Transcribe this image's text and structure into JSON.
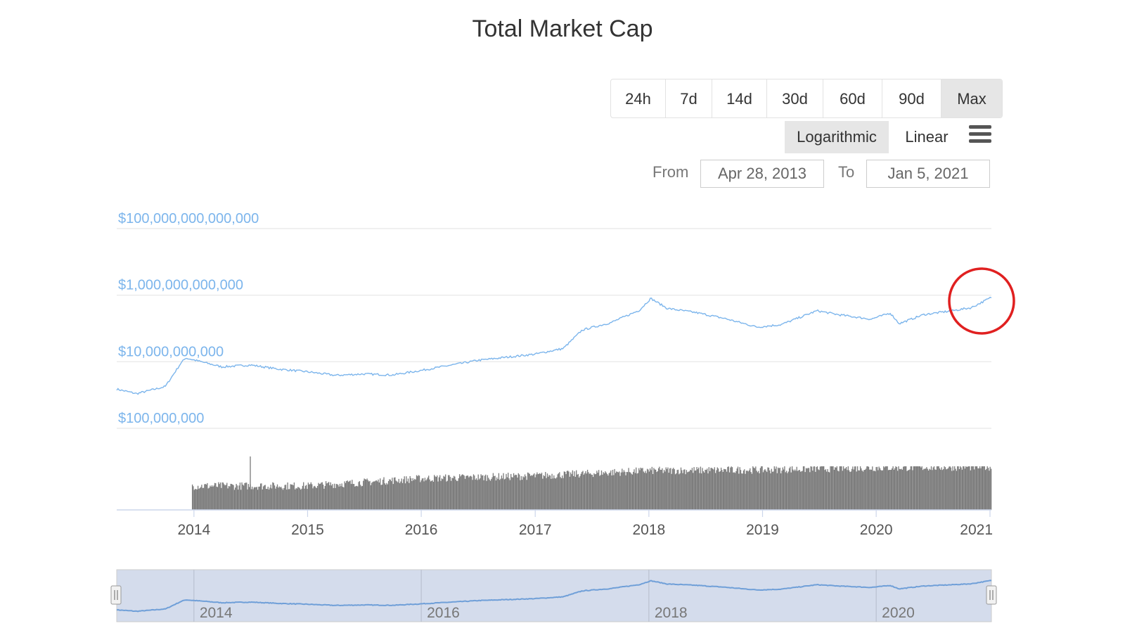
{
  "title": "Total Market Cap",
  "range_buttons": [
    {
      "label": "24h",
      "active": false
    },
    {
      "label": "7d",
      "active": false
    },
    {
      "label": "14d",
      "active": false
    },
    {
      "label": "30d",
      "active": false
    },
    {
      "label": "60d",
      "active": false
    },
    {
      "label": "90d",
      "active": false
    },
    {
      "label": "Max",
      "active": true
    }
  ],
  "scale_buttons": {
    "log_label": "Logarithmic",
    "linear_label": "Linear",
    "active": "Logarithmic"
  },
  "menu_icon": "hamburger-menu-icon",
  "date_range": {
    "from_label": "From",
    "from_value": "Apr 28, 2013",
    "to_label": "To",
    "to_value": "Jan 5, 2021"
  },
  "highlight": {
    "shape": "circle",
    "color": "#e02020",
    "marks": "latest value, Jan 2021"
  },
  "colors": {
    "line": "#7cb5ec",
    "volume": "#7a7a7a",
    "navigator_fill": "#d4dcec",
    "navigator_line": "#6f9fd8"
  },
  "chart_data": {
    "type": "line",
    "title": "Total Market Cap",
    "y_scale": "log",
    "ylim": [
      100000000,
      100000000000000
    ],
    "y_ticks": [
      {
        "value": 100000000000000,
        "label": "$100,000,000,000,000"
      },
      {
        "value": 1000000000000,
        "label": "$1,000,000,000,000"
      },
      {
        "value": 10000000000,
        "label": "$10,000,000,000"
      },
      {
        "value": 100000000,
        "label": "$100,000,000"
      }
    ],
    "xlim": [
      "2013-04-28",
      "2021-01-05"
    ],
    "x_ticks": [
      "2014",
      "2015",
      "2016",
      "2017",
      "2018",
      "2019",
      "2020",
      "2021"
    ],
    "grid": true,
    "series": [
      {
        "kind": "market_cap",
        "points": [
          [
            "2013-04-28",
            1500000000
          ],
          [
            "2013-07-01",
            1100000000
          ],
          [
            "2013-10-01",
            1800000000
          ],
          [
            "2013-11-20",
            9000000000
          ],
          [
            "2013-12-05",
            13000000000
          ],
          [
            "2014-01-15",
            10500000000
          ],
          [
            "2014-04-01",
            7000000000
          ],
          [
            "2014-07-01",
            8000000000
          ],
          [
            "2014-10-01",
            6000000000
          ],
          [
            "2015-01-01",
            5000000000
          ],
          [
            "2015-04-01",
            3900000000
          ],
          [
            "2015-07-01",
            4300000000
          ],
          [
            "2015-10-01",
            4000000000
          ],
          [
            "2016-01-01",
            5500000000
          ],
          [
            "2016-07-01",
            11000000000
          ],
          [
            "2017-01-01",
            17000000000
          ],
          [
            "2017-04-01",
            25000000000
          ],
          [
            "2017-06-01",
            90000000000
          ],
          [
            "2017-09-01",
            150000000000
          ],
          [
            "2017-12-01",
            350000000000
          ],
          [
            "2018-01-07",
            800000000000
          ],
          [
            "2018-03-01",
            400000000000
          ],
          [
            "2018-06-01",
            300000000000
          ],
          [
            "2018-09-01",
            200000000000
          ],
          [
            "2018-12-15",
            110000000000
          ],
          [
            "2019-03-01",
            130000000000
          ],
          [
            "2019-06-25",
            340000000000
          ],
          [
            "2019-09-01",
            260000000000
          ],
          [
            "2019-12-15",
            190000000000
          ],
          [
            "2020-02-15",
            290000000000
          ],
          [
            "2020-03-15",
            140000000000
          ],
          [
            "2020-06-01",
            260000000000
          ],
          [
            "2020-09-01",
            340000000000
          ],
          [
            "2020-11-01",
            420000000000
          ],
          [
            "2021-01-05",
            860000000000
          ]
        ]
      },
      {
        "kind": "volume",
        "start": "2013-12-27",
        "points": [
          [
            "2014-01-01",
            55
          ],
          [
            "2015-01-01",
            55
          ],
          [
            "2016-01-01",
            72
          ],
          [
            "2017-01-01",
            78
          ],
          [
            "2018-01-01",
            90
          ],
          [
            "2019-01-01",
            92
          ],
          [
            "2020-01-01",
            97
          ],
          [
            "2021-01-05",
            99
          ]
        ]
      }
    ],
    "navigator": {
      "x_ticks": [
        "2014",
        "2016",
        "2018",
        "2020"
      ]
    }
  }
}
